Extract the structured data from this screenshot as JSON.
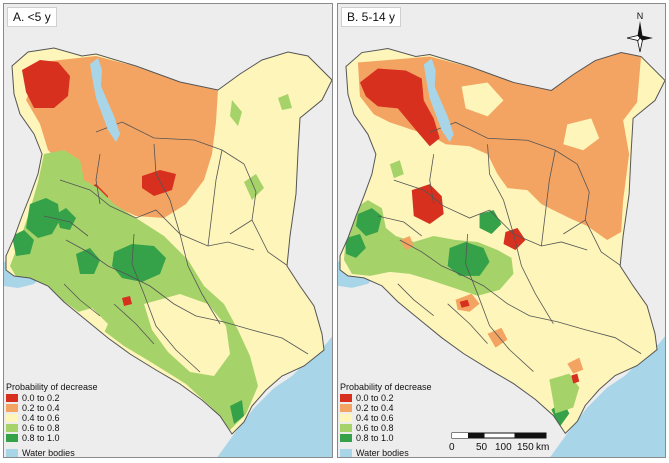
{
  "colors": {
    "c0": "#d7301f",
    "c1": "#f4a462",
    "c2": "#fdf5b9",
    "c3": "#a6d26a",
    "c4": "#35a249",
    "water": "#a9d5e8",
    "border": "#555555",
    "background": "#ededed"
  },
  "panels": [
    {
      "title": "A. <5 y",
      "legend": {
        "title": "Probability of decrease",
        "classes": [
          "0.0 to 0.2",
          "0.2 to 0.4",
          "0.4 to 0.6",
          "0.6 to 0.8",
          "0.8 to 1.0"
        ],
        "water_label": "Water bodies"
      }
    },
    {
      "title": "B. 5-14 y",
      "legend": {
        "title": "Probability of decrease",
        "classes": [
          "0.0 to 0.2",
          "0.2 to 0.4",
          "0.4 to 0.6",
          "0.6 to 0.8",
          "0.8 to 1.0"
        ],
        "water_label": "Water bodies"
      },
      "compass_label": "N",
      "scale_labels": [
        "0",
        "50",
        "100",
        "150",
        "km"
      ]
    }
  ]
}
